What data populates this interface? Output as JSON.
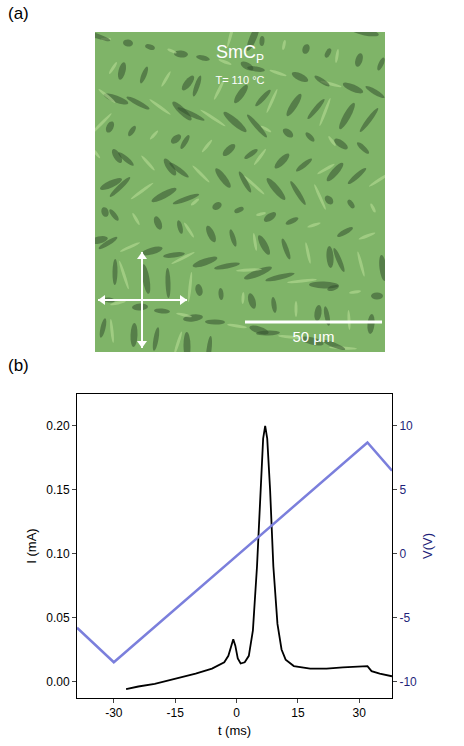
{
  "panel_a": {
    "label": "(a)",
    "phase": "SmC",
    "phase_subscript": "P",
    "temperature": "T= 110 °C",
    "scale_bar": "50 μm"
  },
  "panel_b_label": "(b)",
  "chart_data": {
    "type": "line",
    "x_label": "t (ms)",
    "y_label": "I (mA)",
    "y2_label": "V(V)",
    "xlim": [
      -39,
      38
    ],
    "xticks": [
      -30,
      -15,
      0,
      15,
      30
    ],
    "ylim": [
      -0.013,
      0.225
    ],
    "yticks": [
      {
        "value": 0,
        "label": "0.00"
      },
      {
        "value": 0.05,
        "label": "0.05"
      },
      {
        "value": 0.1,
        "label": "0.10"
      },
      {
        "value": 0.15,
        "label": "0.15"
      },
      {
        "value": 0.2,
        "label": "0.20"
      }
    ],
    "y2lim": [
      -11.3,
      12.5
    ],
    "y2ticks": [
      -10,
      -5,
      0,
      5,
      10
    ],
    "grid": false,
    "series": [
      {
        "name": "I (mA)",
        "color": "#000000",
        "x": [
          -27,
          -24,
          -20,
          -15,
          -10,
          -6,
          -3,
          -2,
          -1.2,
          -0.8,
          -0.3,
          0.3,
          1,
          2,
          3,
          4,
          5,
          5.8,
          6.5,
          7,
          7.5,
          8.2,
          9,
          10,
          11,
          12,
          14,
          18,
          22,
          26,
          30,
          32,
          33,
          35,
          38
        ],
        "values": [
          -0.006,
          -0.004,
          -0.002,
          0.002,
          0.006,
          0.01,
          0.015,
          0.02,
          0.03,
          0.033,
          0.028,
          0.018,
          0.014,
          0.015,
          0.02,
          0.04,
          0.09,
          0.15,
          0.19,
          0.2,
          0.19,
          0.15,
          0.09,
          0.045,
          0.025,
          0.017,
          0.012,
          0.01,
          0.01,
          0.011,
          0.012,
          0.012,
          0.008,
          0.006,
          0.004
        ]
      },
      {
        "name": "V(V)",
        "color": "#7b7fdc",
        "axis": "y2",
        "x": [
          -39,
          -30,
          32,
          38
        ],
        "values": [
          -5.8,
          -8.5,
          8.7,
          6.5
        ]
      }
    ]
  }
}
